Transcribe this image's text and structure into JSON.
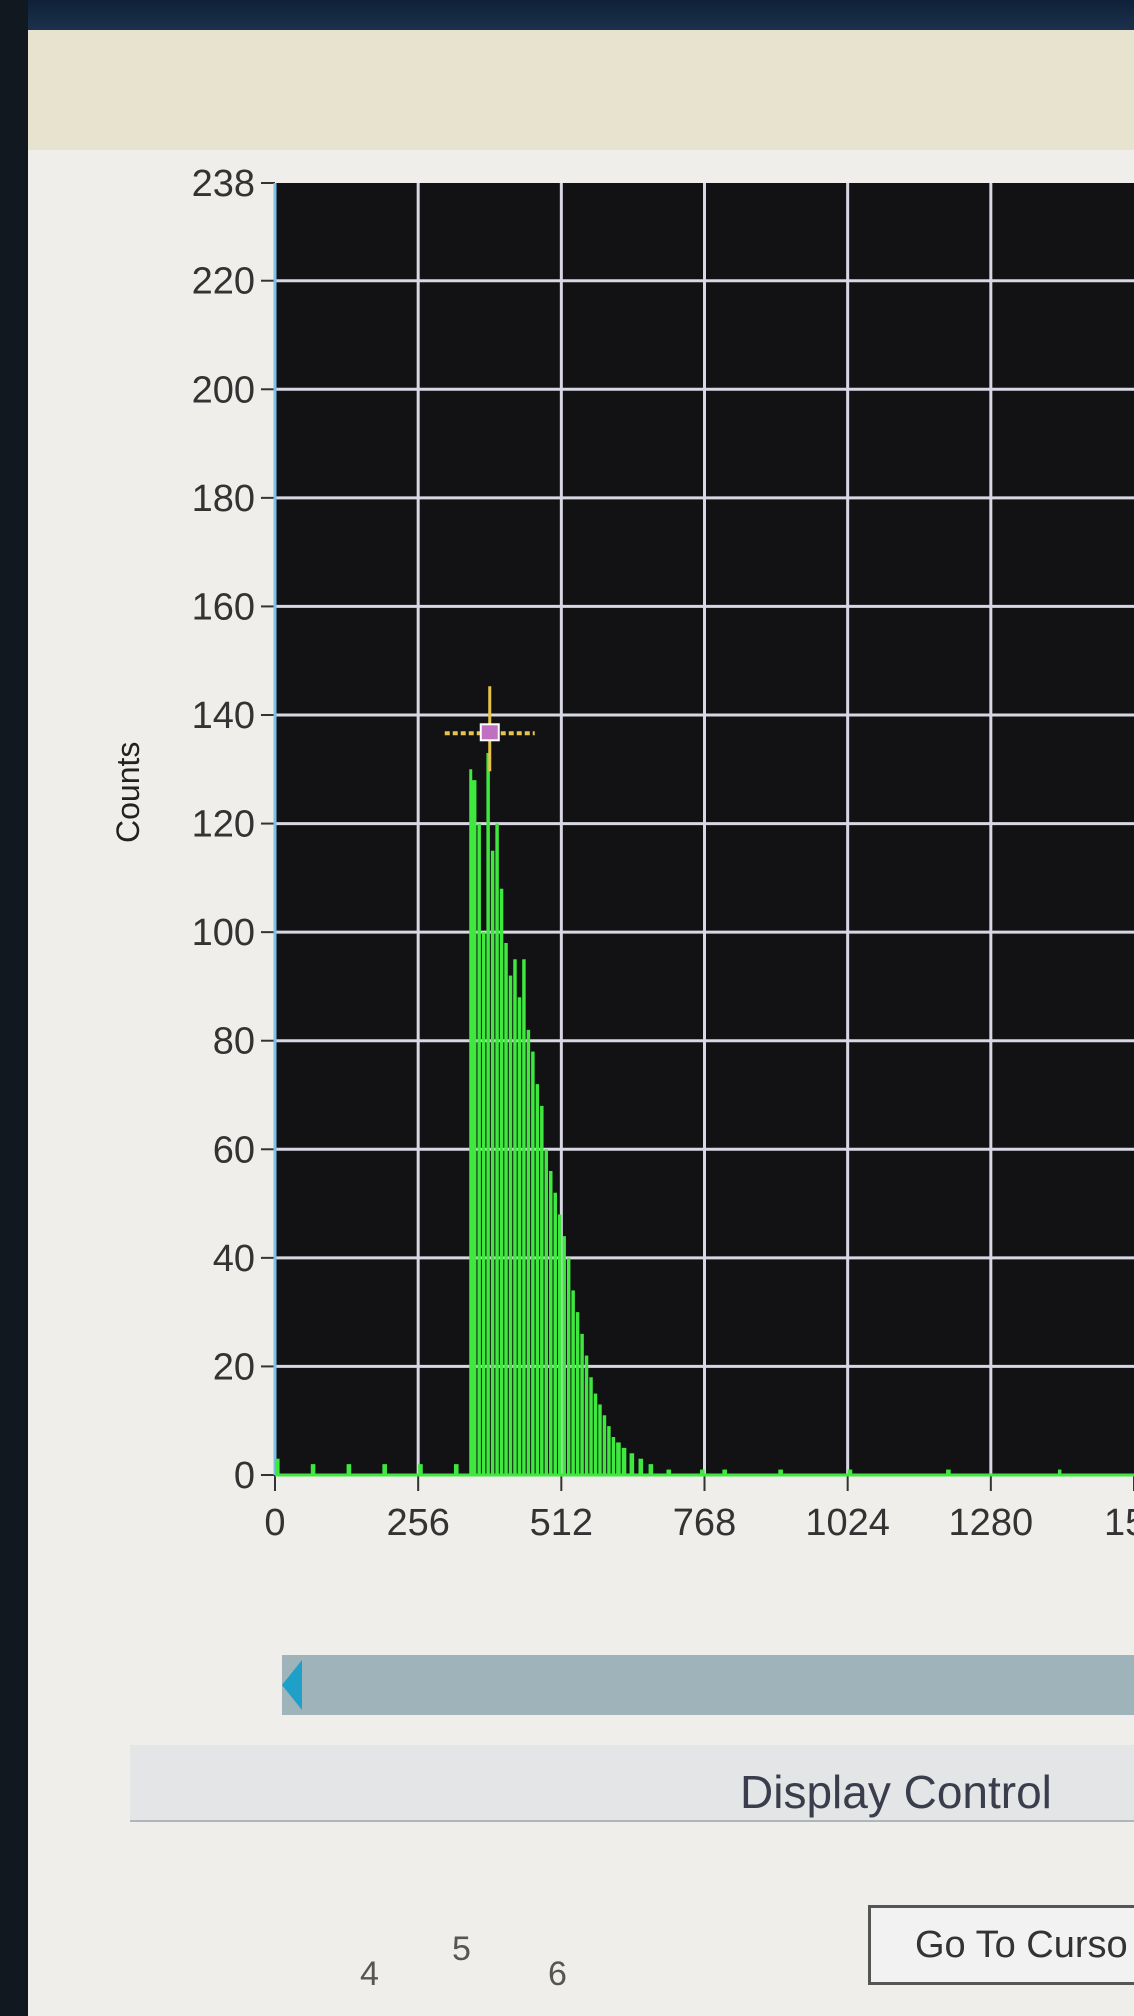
{
  "chart_data": {
    "type": "bar",
    "xlabel": "",
    "ylabel": "Counts",
    "xlim": [
      0,
      1536
    ],
    "ylim": [
      0,
      238
    ],
    "x_ticks": [
      "0",
      "256",
      "512",
      "768",
      "1024",
      "1280",
      "15"
    ],
    "y_ticks": [
      "0",
      "20",
      "40",
      "60",
      "80",
      "100",
      "120",
      "140",
      "160",
      "180",
      "200",
      "220",
      "238"
    ],
    "grid": true,
    "background": "#121214",
    "bar_color": "#3ee83e",
    "grid_color": "#d8d8e4",
    "cursor": {
      "x": 384,
      "y": 137,
      "color": "#e6c44a"
    },
    "marker_line_x": 350,
    "bins": [
      [
        0,
        3
      ],
      [
        64,
        2
      ],
      [
        128,
        2
      ],
      [
        192,
        2
      ],
      [
        256,
        2
      ],
      [
        320,
        2
      ],
      [
        352,
        128
      ],
      [
        362,
        120
      ],
      [
        370,
        100
      ],
      [
        378,
        133
      ],
      [
        386,
        115
      ],
      [
        394,
        120
      ],
      [
        402,
        108
      ],
      [
        410,
        98
      ],
      [
        418,
        92
      ],
      [
        426,
        95
      ],
      [
        434,
        88
      ],
      [
        442,
        95
      ],
      [
        450,
        82
      ],
      [
        458,
        78
      ],
      [
        466,
        72
      ],
      [
        474,
        68
      ],
      [
        482,
        60
      ],
      [
        490,
        56
      ],
      [
        498,
        52
      ],
      [
        506,
        48
      ],
      [
        514,
        44
      ],
      [
        522,
        40
      ],
      [
        530,
        34
      ],
      [
        538,
        30
      ],
      [
        546,
        26
      ],
      [
        554,
        22
      ],
      [
        562,
        18
      ],
      [
        570,
        15
      ],
      [
        578,
        13
      ],
      [
        586,
        11
      ],
      [
        594,
        9
      ],
      [
        602,
        7
      ],
      [
        610,
        6
      ],
      [
        620,
        5
      ],
      [
        634,
        4
      ],
      [
        650,
        3
      ],
      [
        668,
        2
      ],
      [
        700,
        1
      ],
      [
        760,
        1
      ],
      [
        800,
        1
      ],
      [
        900,
        1
      ],
      [
        1024,
        1
      ],
      [
        1200,
        1
      ],
      [
        1400,
        1
      ]
    ]
  },
  "scrollbar": {
    "label": ""
  },
  "display_control": {
    "title": "Display Control"
  },
  "buttons": {
    "goto_cursor": "Go To Curso"
  },
  "bottom_ticks": [
    "4",
    "5",
    "6"
  ]
}
